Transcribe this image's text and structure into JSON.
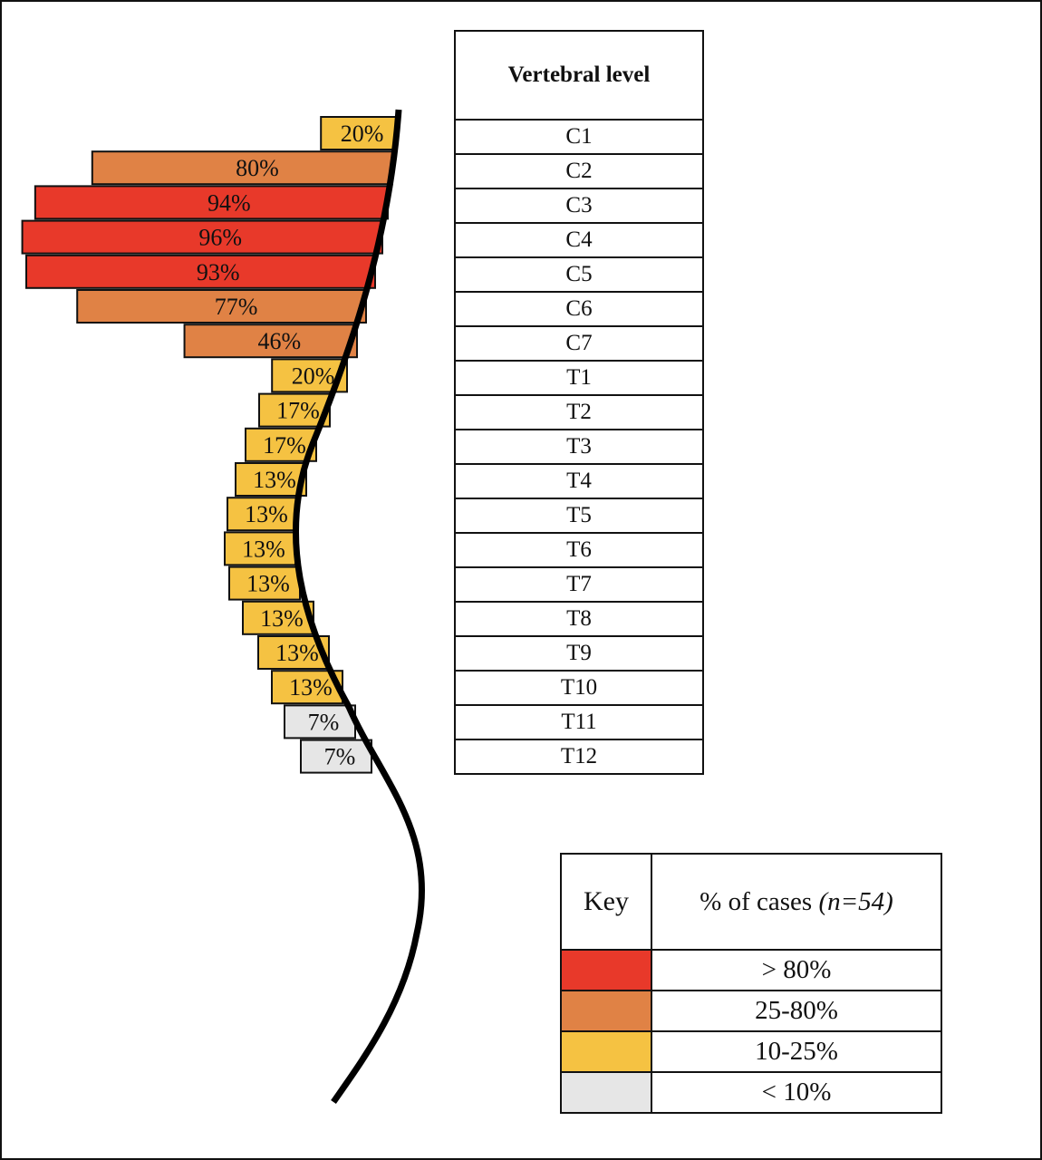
{
  "chart_data": {
    "type": "bar",
    "orientation": "horizontal",
    "categories": [
      "C1",
      "C2",
      "C3",
      "C4",
      "C5",
      "C6",
      "C7",
      "T1",
      "T2",
      "T3",
      "T4",
      "T5",
      "T6",
      "T7",
      "T8",
      "T9",
      "T10",
      "T11",
      "T12"
    ],
    "values": [
      20,
      80,
      94,
      96,
      93,
      77,
      46,
      20,
      17,
      17,
      13,
      13,
      13,
      13,
      13,
      13,
      13,
      7,
      7
    ],
    "value_labels": [
      "20%",
      "80%",
      "94%",
      "96%",
      "93%",
      "77%",
      "46%",
      "20%",
      "17%",
      "17%",
      "13%",
      "13%",
      "13%",
      "13%",
      "13%",
      "13%",
      "13%",
      "7%",
      "7%"
    ],
    "xlim": [
      0,
      100
    ]
  },
  "level_table": {
    "header": "Vertebral level"
  },
  "key": {
    "header_key": "Key",
    "header_cases_prefix": "% of cases ",
    "header_cases_n": "(n=54)",
    "items": [
      {
        "label": "> 80%",
        "color": "#e8392a"
      },
      {
        "label": "25-80%",
        "color": "#e08245"
      },
      {
        "label": "10-25%",
        "color": "#f5c242"
      },
      {
        "label": "< 10%",
        "color": "#e6e6e6"
      }
    ]
  }
}
